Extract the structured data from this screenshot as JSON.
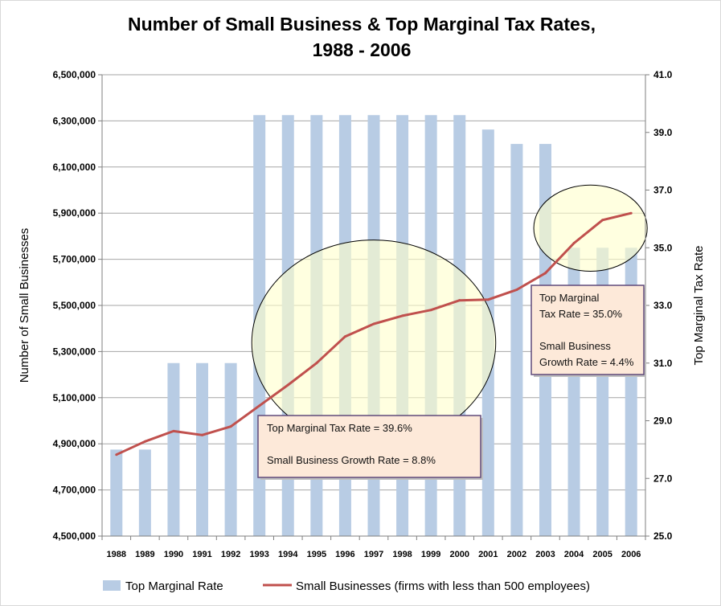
{
  "chart_data": {
    "type": "bar",
    "title": [
      "Number of Small Business & Top Marginal Tax Rates,",
      "1988 - 2006"
    ],
    "categories": [
      "1988",
      "1989",
      "1990",
      "1991",
      "1992",
      "1993",
      "1994",
      "1995",
      "1996",
      "1997",
      "1998",
      "1999",
      "2000",
      "2001",
      "2002",
      "2003",
      "2004",
      "2005",
      "2006"
    ],
    "series": [
      {
        "name": "Top Marginal Rate",
        "type": "bar",
        "axis": "right",
        "color": "#b8cce4",
        "values": [
          28.0,
          28.0,
          31.0,
          31.0,
          31.0,
          39.6,
          39.6,
          39.6,
          39.6,
          39.6,
          39.6,
          39.6,
          39.6,
          39.1,
          38.6,
          38.6,
          35.0,
          35.0,
          35.0
        ]
      },
      {
        "name": "Small Businesses (firms with less than 500 employees)",
        "type": "line",
        "axis": "left",
        "color": "#c0504d",
        "values": [
          4853000,
          4910000,
          4955000,
          4938000,
          4975000,
          5065000,
          5155000,
          5250000,
          5365000,
          5420000,
          5455000,
          5480000,
          5522000,
          5525000,
          5568000,
          5640000,
          5770000,
          5870000,
          5900000
        ]
      }
    ],
    "y_left": {
      "label": "Number of Small Businesses",
      "ylim": [
        4500000,
        6500000
      ],
      "ticks": [
        "4,500,000",
        "4,700,000",
        "4,900,000",
        "5,100,000",
        "5,300,000",
        "5,500,000",
        "5,700,000",
        "5,900,000",
        "6,100,000",
        "6,300,000",
        "6,500,000"
      ]
    },
    "y_right": {
      "label": "Top Marginal Tax Rate",
      "ylim": [
        25.0,
        41.0
      ],
      "ticks": [
        "25.0",
        "27.0",
        "29.0",
        "31.0",
        "33.0",
        "35.0",
        "37.0",
        "39.0",
        "41.0"
      ]
    },
    "grid": true,
    "legend_position": "bottom",
    "annotations": [
      {
        "lines": [
          "Top Marginal Tax Rate = 39.6%",
          "",
          "Small Business Growth Rate = 8.8%"
        ]
      },
      {
        "lines": [
          "Top Marginal",
          "Tax Rate = 35.0%",
          "",
          "Small Business",
          "Growth Rate = 4.4%"
        ]
      }
    ],
    "colors": {
      "bar": "#b8cce4",
      "line": "#c0504d",
      "highlight_fill": "#ffffcc",
      "annotation_fill": "#fde9d9",
      "annotation_border": "#604a7b"
    }
  }
}
